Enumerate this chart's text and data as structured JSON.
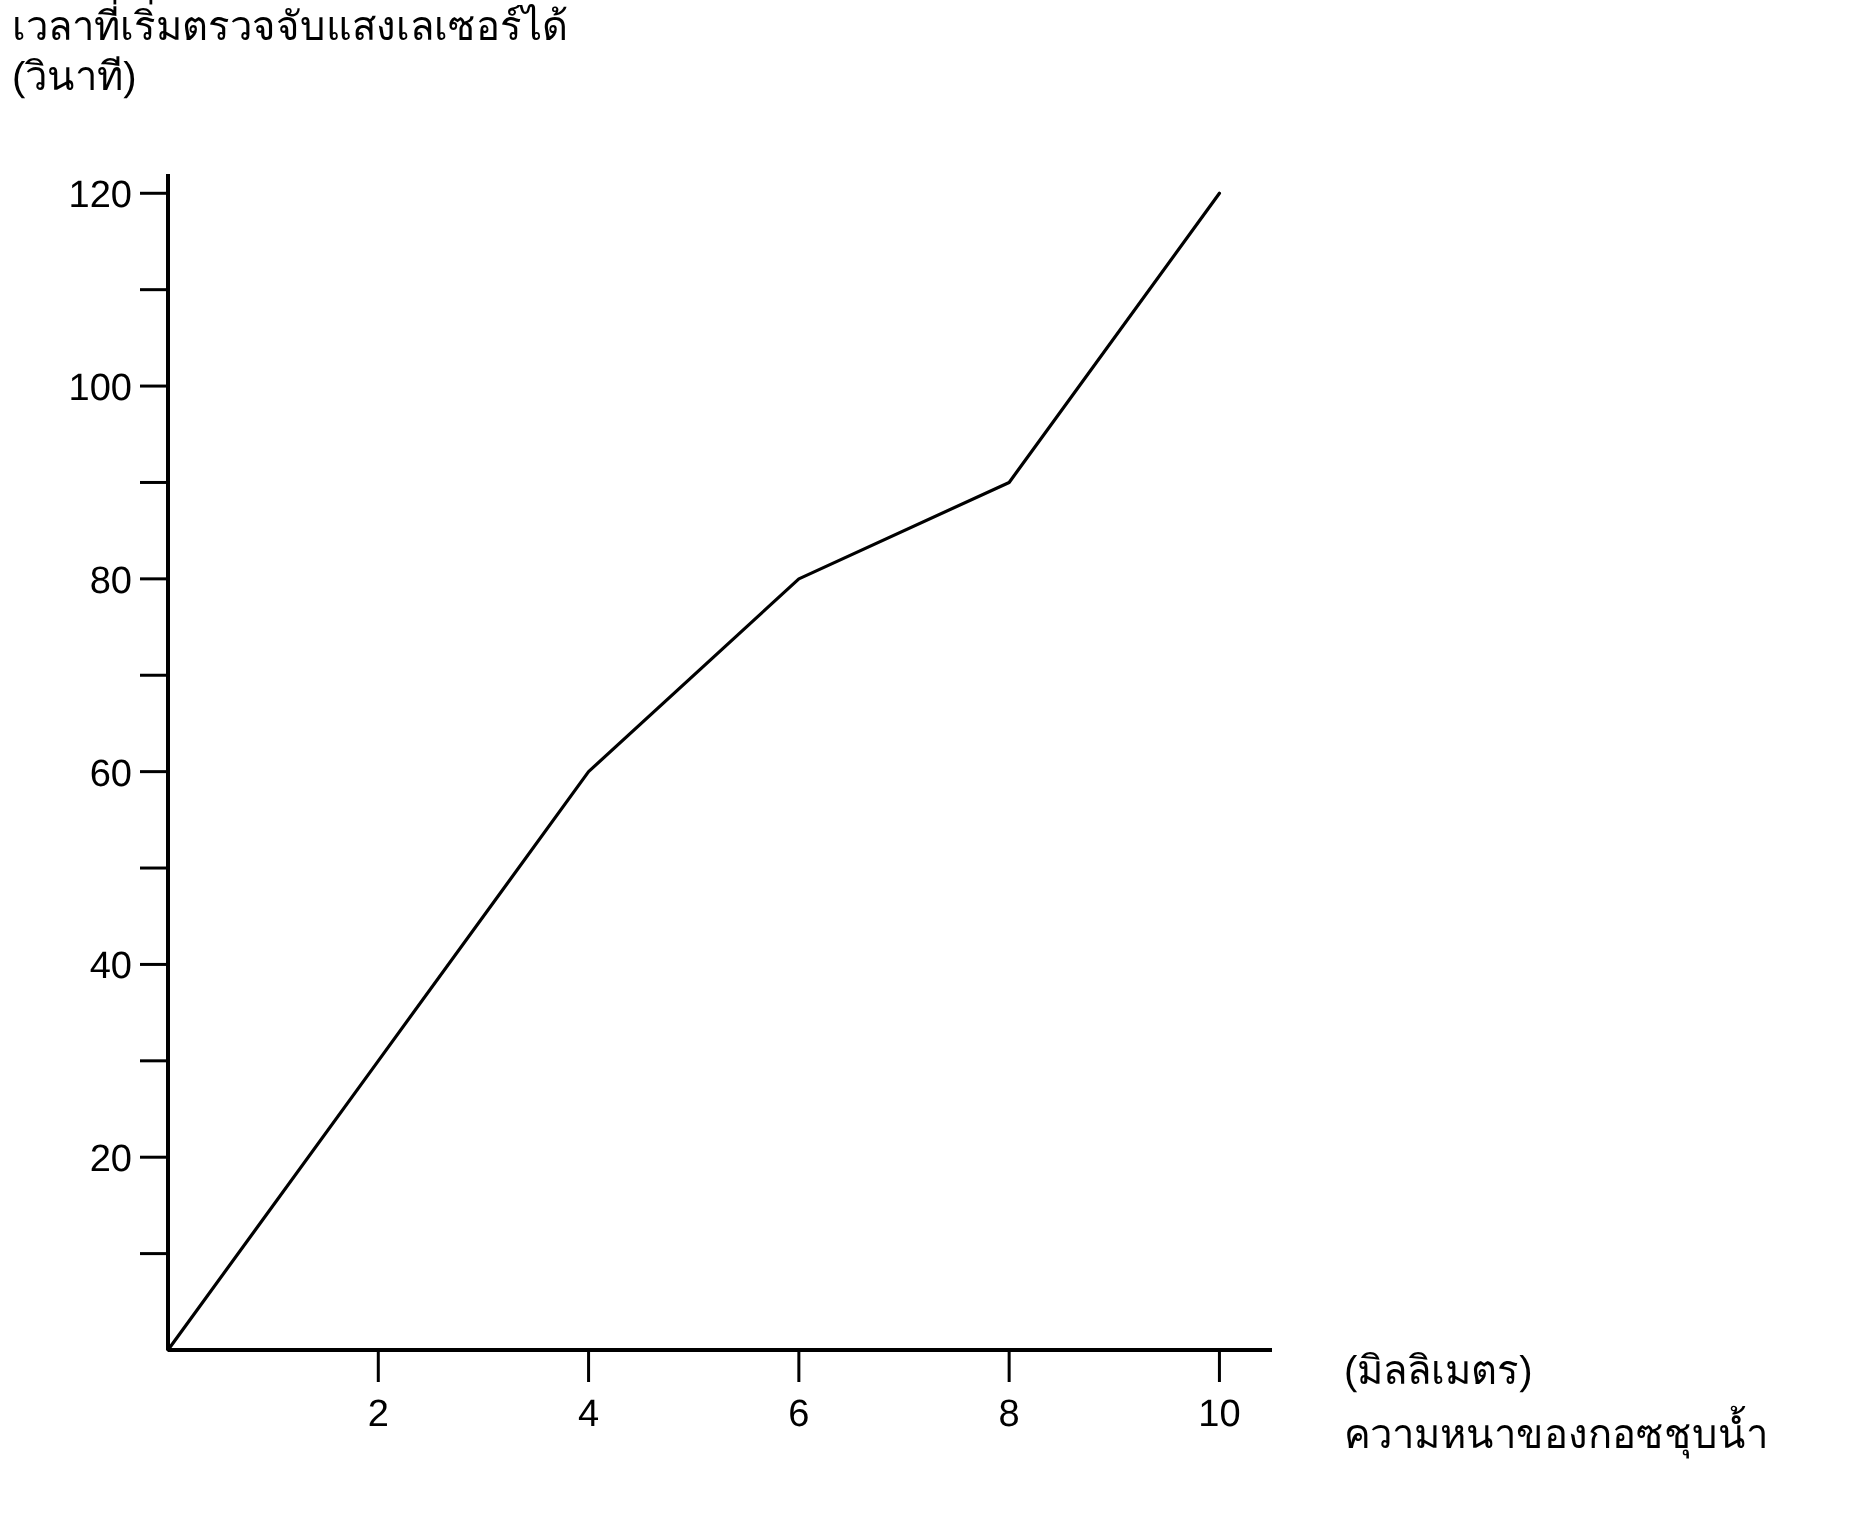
{
  "chart_data": {
    "type": "line",
    "ylabel": "เวลาที่เริ่มตรวจจับแสงเลเซอร์ได้\n(วินาที)",
    "xlabel": "(มิลลิเมตร)\nความหนาของกอซชุบน้ำ",
    "x": [
      0,
      2,
      4,
      6,
      8,
      10
    ],
    "values": [
      0,
      30,
      60,
      80,
      90,
      120
    ],
    "color": "#000000",
    "xlim": [
      0,
      10.5
    ],
    "ylim": [
      0,
      122
    ],
    "xticks": [
      2,
      4,
      6,
      8,
      10
    ],
    "yticks": [
      {
        "value": 10,
        "label": null
      },
      20,
      {
        "value": 30,
        "label": null
      },
      40,
      {
        "value": 50,
        "label": null
      },
      60,
      {
        "value": 70,
        "label": null
      },
      80,
      {
        "value": 90,
        "label": null
      },
      100,
      {
        "value": 110,
        "label": null
      },
      120
    ]
  }
}
